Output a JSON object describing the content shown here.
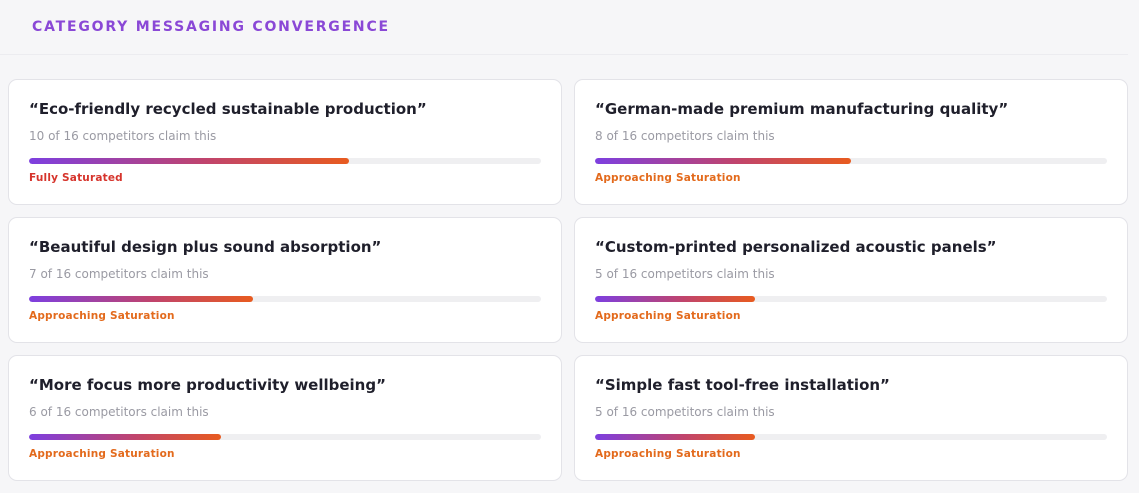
{
  "header": {
    "title": "CATEGORY MESSAGING CONVERGENCE"
  },
  "colors": {
    "accent_purple": "#8a48d6",
    "bar_start": "#7d3fe0",
    "bar_end": "#e85b1f",
    "saturated": "#d6342c",
    "approaching": "#e36a1c"
  },
  "claims": [
    {
      "text": "“Eco-friendly recycled sustainable production”",
      "count_text": "10 of 16 competitors claim this",
      "claimed": 10,
      "total": 16,
      "status": "Fully Saturated",
      "status_color": "#d6342c"
    },
    {
      "text": "“German-made premium manufacturing quality”",
      "count_text": "8 of 16 competitors claim this",
      "claimed": 8,
      "total": 16,
      "status": "Approaching Saturation",
      "status_color": "#e36a1c"
    },
    {
      "text": "“Beautiful design plus sound absorption”",
      "count_text": "7 of 16 competitors claim this",
      "claimed": 7,
      "total": 16,
      "status": "Approaching Saturation",
      "status_color": "#e36a1c"
    },
    {
      "text": "“Custom-printed personalized acoustic panels”",
      "count_text": "5 of 16 competitors claim this",
      "claimed": 5,
      "total": 16,
      "status": "Approaching Saturation",
      "status_color": "#e36a1c"
    },
    {
      "text": "“More focus more productivity wellbeing”",
      "count_text": "6 of 16 competitors claim this",
      "claimed": 6,
      "total": 16,
      "status": "Approaching Saturation",
      "status_color": "#e36a1c"
    },
    {
      "text": "“Simple fast tool-free installation”",
      "count_text": "5 of 16 competitors claim this",
      "claimed": 5,
      "total": 16,
      "status": "Approaching Saturation",
      "status_color": "#e36a1c"
    }
  ]
}
